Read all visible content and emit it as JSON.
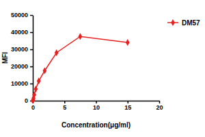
{
  "chart_data": {
    "type": "line",
    "x_label": "Concentration(μg/ml)",
    "y_label": "MFI",
    "series": [
      {
        "name": "DM57",
        "color": "#e8201f",
        "marker": "diamond",
        "x": [
          0,
          0.06,
          0.12,
          0.23,
          0.47,
          0.94,
          1.88,
          3.75,
          7.5,
          15
        ],
        "values": [
          0,
          500,
          1500,
          3500,
          6800,
          11500,
          17500,
          28000,
          37500,
          34000
        ]
      }
    ],
    "xlim": [
      0,
      20
    ],
    "xticks": [
      0,
      5,
      10,
      15,
      20
    ],
    "ylim": [
      0,
      50000
    ],
    "yticks": [
      0,
      10000,
      20000,
      30000,
      40000,
      50000
    ],
    "legend": "right",
    "grid": false
  }
}
